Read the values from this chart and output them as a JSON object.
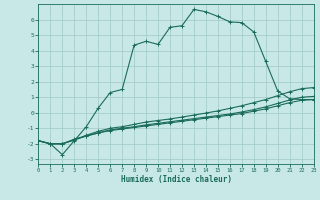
{
  "xlabel": "Humidex (Indice chaleur)",
  "bg_color": "#c8e8e8",
  "grid_color": "#a0c8c8",
  "line_color": "#1a6b5a",
  "xlim": [
    0,
    23
  ],
  "ylim": [
    -3.3,
    7.0
  ],
  "xticks": [
    0,
    1,
    2,
    3,
    4,
    5,
    6,
    7,
    8,
    9,
    10,
    11,
    12,
    13,
    14,
    15,
    16,
    17,
    18,
    19,
    20,
    21,
    22,
    23
  ],
  "yticks": [
    -3,
    -2,
    -1,
    0,
    1,
    2,
    3,
    4,
    5,
    6
  ],
  "series1_x": [
    0,
    1,
    2,
    3,
    4,
    5,
    6,
    7,
    8,
    9,
    10,
    11,
    12,
    13,
    14,
    15,
    16,
    17,
    18,
    19,
    20,
    21,
    22,
    23
  ],
  "series1_y": [
    -1.8,
    -2.0,
    -2.0,
    -1.7,
    -1.5,
    -1.3,
    -1.15,
    -1.05,
    -0.95,
    -0.85,
    -0.75,
    -0.65,
    -0.55,
    -0.45,
    -0.35,
    -0.25,
    -0.15,
    -0.05,
    0.1,
    0.25,
    0.45,
    0.65,
    0.8,
    0.85
  ],
  "series2_x": [
    0,
    1,
    2,
    3,
    4,
    5,
    6,
    7,
    8,
    9,
    10,
    11,
    12,
    13,
    14,
    15,
    16,
    17,
    18,
    19,
    20,
    21,
    22,
    23
  ],
  "series2_y": [
    -1.8,
    -2.0,
    -2.0,
    -1.75,
    -1.5,
    -1.3,
    -1.1,
    -1.0,
    -0.9,
    -0.78,
    -0.68,
    -0.58,
    -0.48,
    -0.38,
    -0.28,
    -0.18,
    -0.08,
    0.05,
    0.2,
    0.38,
    0.6,
    0.82,
    1.0,
    1.05
  ],
  "series3_x": [
    0,
    1,
    2,
    3,
    4,
    5,
    6,
    7,
    8,
    9,
    10,
    11,
    12,
    13,
    14,
    15,
    16,
    17,
    18,
    19,
    20,
    21,
    22,
    23
  ],
  "series3_y": [
    -1.8,
    -2.0,
    -2.0,
    -1.75,
    -1.45,
    -1.2,
    -1.0,
    -0.9,
    -0.75,
    -0.6,
    -0.5,
    -0.4,
    -0.28,
    -0.15,
    -0.02,
    0.12,
    0.28,
    0.45,
    0.65,
    0.85,
    1.1,
    1.35,
    1.55,
    1.62
  ],
  "series4_x": [
    0,
    1,
    2,
    3,
    4,
    5,
    6,
    7,
    8,
    9,
    10,
    11,
    12,
    13,
    14,
    15,
    16,
    17,
    18,
    19,
    20,
    21,
    22,
    23
  ],
  "series4_y": [
    -1.8,
    -2.0,
    -2.7,
    -1.8,
    -0.9,
    0.3,
    1.3,
    1.5,
    4.35,
    4.6,
    4.4,
    5.5,
    5.6,
    6.65,
    6.5,
    6.2,
    5.85,
    5.8,
    5.2,
    3.3,
    1.4,
    0.9,
    0.85,
    0.85
  ]
}
